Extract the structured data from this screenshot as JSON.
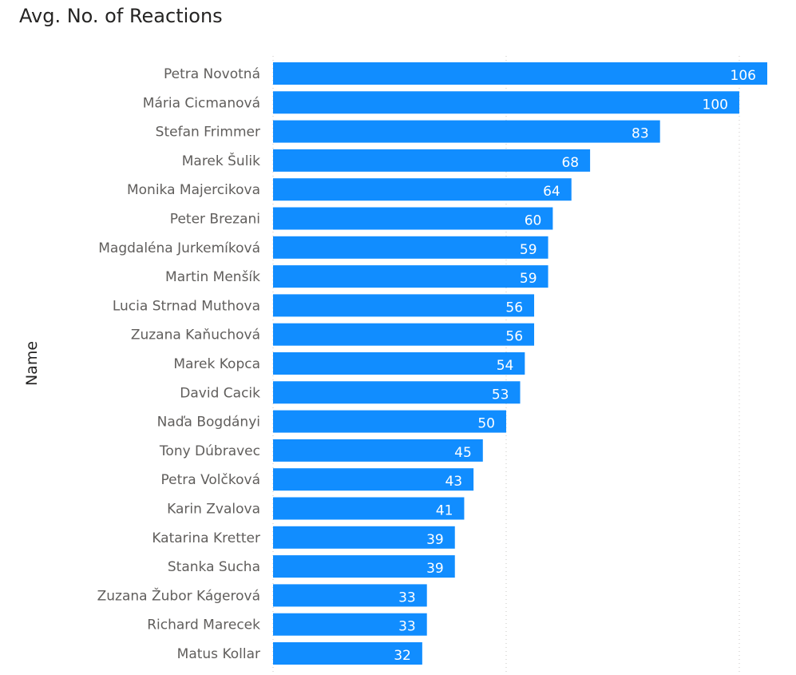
{
  "chart_data": {
    "type": "bar",
    "orientation": "horizontal",
    "title": "Avg. No. of Reactions",
    "ylabel": "Name",
    "xlabel": "",
    "bar_color": "#118DFF",
    "grid": true,
    "xlim": [
      0,
      106
    ],
    "categories": [
      "Petra Novotná",
      "Mária Cicmanová",
      "Stefan Frimmer",
      "Marek Šulik",
      "Monika Majercikova",
      "Peter Brezani",
      "Magdaléna Jurkemíková",
      "Martin Menšík",
      "Lucia Strnad Muthova",
      "Zuzana Kaňuchová",
      "Marek Kopca",
      "David Cacik",
      "Naďa Bogdányi",
      "Tony Dúbravec",
      "Petra Volčková",
      "Karin Zvalova",
      "Katarina Kretter",
      "Stanka Sucha",
      "Zuzana Žubor Kágerová",
      "Richard Marecek",
      "Matus Kollar"
    ],
    "values": [
      106,
      100,
      83,
      68,
      64,
      60,
      59,
      59,
      56,
      56,
      54,
      53,
      50,
      45,
      43,
      41,
      39,
      39,
      33,
      33,
      32
    ],
    "value_labels": [
      "106",
      "100",
      "83",
      "68",
      "64",
      "60",
      "59",
      "59",
      "56",
      "56",
      "54",
      "53",
      "50",
      "45",
      "43",
      "41",
      "39",
      "39",
      "33",
      "33",
      "32"
    ]
  }
}
